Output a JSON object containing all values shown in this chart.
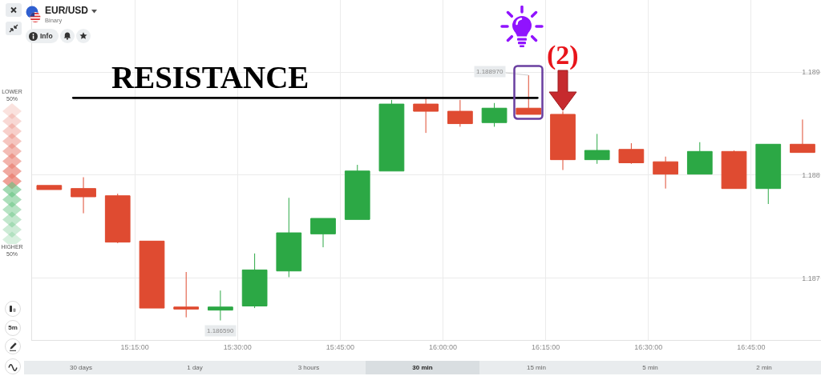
{
  "chart_data": {
    "type": "candlestick",
    "title": "EUR/USD",
    "subtitle": "Binary",
    "x": [
      15.0417,
      15.125,
      15.2083,
      15.2917,
      15.375,
      15.4583,
      15.5417,
      15.625,
      15.7083,
      15.7917,
      15.875,
      15.9583,
      16.0417,
      16.125,
      16.2083,
      16.2917,
      16.375,
      16.4583,
      16.5417,
      16.625,
      16.7083,
      16.7917,
      16.875
    ],
    "ohlc": [
      [
        1.1879,
        1.1879,
        1.18786,
        1.18786
      ],
      [
        1.18787,
        1.18798,
        1.18763,
        1.18779
      ],
      [
        1.1878,
        1.18782,
        1.18734,
        1.18735
      ],
      [
        1.18736,
        1.18736,
        1.18671,
        1.18671
      ],
      [
        1.18672,
        1.18706,
        1.18662,
        1.1867
      ],
      [
        1.18669,
        1.18688,
        1.18659,
        1.18672
      ],
      [
        1.18673,
        1.18724,
        1.18671,
        1.18708
      ],
      [
        1.18707,
        1.18778,
        1.18701,
        1.18744
      ],
      [
        1.18743,
        1.18758,
        1.1873,
        1.18758
      ],
      [
        1.18757,
        1.1881,
        1.18757,
        1.18804
      ],
      [
        1.18804,
        1.18873,
        1.18804,
        1.18869
      ],
      [
        1.18869,
        1.18876,
        1.18841,
        1.18862
      ],
      [
        1.18862,
        1.18873,
        1.18847,
        1.1885
      ],
      [
        1.18851,
        1.1887,
        1.18847,
        1.18865
      ],
      [
        1.18865,
        1.18897,
        1.18859,
        1.18859
      ],
      [
        1.18859,
        1.18862,
        1.18805,
        1.18815
      ],
      [
        1.18815,
        1.1884,
        1.18811,
        1.18824
      ],
      [
        1.18825,
        1.18831,
        1.18811,
        1.18812
      ],
      [
        1.18813,
        1.18818,
        1.18787,
        1.18801
      ],
      [
        1.18801,
        1.18832,
        1.18801,
        1.18823
      ],
      [
        1.18823,
        1.18824,
        1.18787,
        1.18787
      ],
      [
        1.18787,
        1.1883,
        1.18772,
        1.1883
      ],
      [
        1.1883,
        1.18854,
        1.18822,
        1.18822
      ]
    ],
    "colors": [
      "#df4b31",
      "#df4b31",
      "#df4b31",
      "#df4b31",
      "#df4b31",
      "#2ca845",
      "#2ca845",
      "#2ca845",
      "#2ca845",
      "#2ca845",
      "#2ca845",
      "#df4b31",
      "#df4b31",
      "#2ca845",
      "#df4b31",
      "#df4b31",
      "#2ca845",
      "#df4b31",
      "#df4b31",
      "#2ca845",
      "#df4b31",
      "#2ca845",
      "#df4b31"
    ],
    "series": [
      {
        "type": "line",
        "name": "RESISTANCE",
        "color": "#000000",
        "x": [
          15.1,
          16.23
        ],
        "values": [
          1.18875,
          1.18875
        ]
      }
    ],
    "xlim": [
      15.0,
      16.92
    ],
    "xticks": [
      {
        "value": 15.25,
        "label": "15:15:00"
      },
      {
        "value": 15.5,
        "label": "15:30:00"
      },
      {
        "value": 15.75,
        "label": "15:45:00"
      },
      {
        "value": 16.0,
        "label": "16:00:00"
      },
      {
        "value": 16.25,
        "label": "16:15:00"
      },
      {
        "value": 16.5,
        "label": "16:30:00"
      },
      {
        "value": 16.75,
        "label": "16:45:00"
      }
    ],
    "ylim": [
      1.1864,
      1.1897
    ],
    "yticks": [
      1.187,
      1.188,
      1.189
    ],
    "grid": true,
    "annotations": [
      "Info",
      "LOWER",
      "50%",
      "HIGHER",
      "50%",
      "5m",
      "30 days",
      "1 day",
      "3 hours",
      "30 min",
      "15 min",
      "5 min",
      "2 min",
      {
        "text": "(2)",
        "x": 16.2917,
        "y": 1.18862
      },
      {
        "text": "1.188970",
        "x": 16.2083,
        "y": 1.18897
      },
      {
        "text": "1.186590",
        "x": 15.4583,
        "y": 1.18659
      }
    ]
  }
}
